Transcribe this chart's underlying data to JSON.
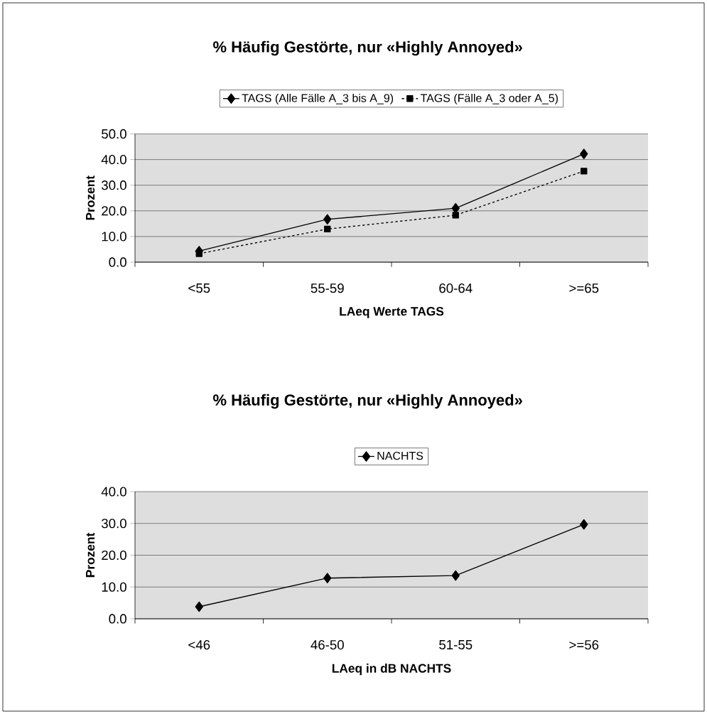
{
  "chart_data": [
    {
      "type": "line",
      "title": "% Häufig Gestörte, nur «Highly Annoyed»",
      "xlabel": "LAeq Werte TAGS",
      "ylabel": "Prozent",
      "categories": [
        "<55",
        "55-59",
        "60-64",
        ">=65"
      ],
      "series": [
        {
          "name": "TAGS (Alle Fälle A_3 bis A_9)",
          "color": "#000000",
          "marker": "diamond",
          "line_style": "solid",
          "values": [
            4.3,
            16.7,
            21.0,
            42.2
          ]
        },
        {
          "name": "TAGS (Fälle A_3 oder A_5)",
          "color": "#000000",
          "marker": "square",
          "line_style": "dotted",
          "values": [
            3.3,
            12.9,
            18.3,
            35.5
          ]
        }
      ],
      "ylim": [
        0,
        50
      ],
      "yticks": [
        {
          "value": 0,
          "label": "0.0"
        },
        {
          "value": 10,
          "label": "10.0"
        },
        {
          "value": 20,
          "label": "20.0"
        },
        {
          "value": 30,
          "label": "30.0"
        },
        {
          "value": 40,
          "label": "40.0"
        },
        {
          "value": 50,
          "label": "50.0"
        }
      ],
      "grid": "y",
      "legend": "top"
    },
    {
      "type": "line",
      "title": "% Häufig Gestörte, nur «Highly Annoyed»",
      "xlabel": "LAeq in dB NACHTS",
      "ylabel": "Prozent",
      "categories": [
        "<46",
        "46-50",
        "51-55",
        ">=56"
      ],
      "series": [
        {
          "name": "NACHTS",
          "color": "#000000",
          "marker": "diamond",
          "line_style": "solid",
          "values": [
            3.8,
            12.8,
            13.6,
            29.7
          ]
        }
      ],
      "ylim": [
        0,
        40
      ],
      "yticks": [
        {
          "value": 0,
          "label": "0.0"
        },
        {
          "value": 10,
          "label": "10.0"
        },
        {
          "value": 20,
          "label": "20.0"
        },
        {
          "value": 30,
          "label": "30.0"
        },
        {
          "value": 40,
          "label": "40.0"
        }
      ],
      "grid": "y",
      "legend": "top"
    }
  ]
}
